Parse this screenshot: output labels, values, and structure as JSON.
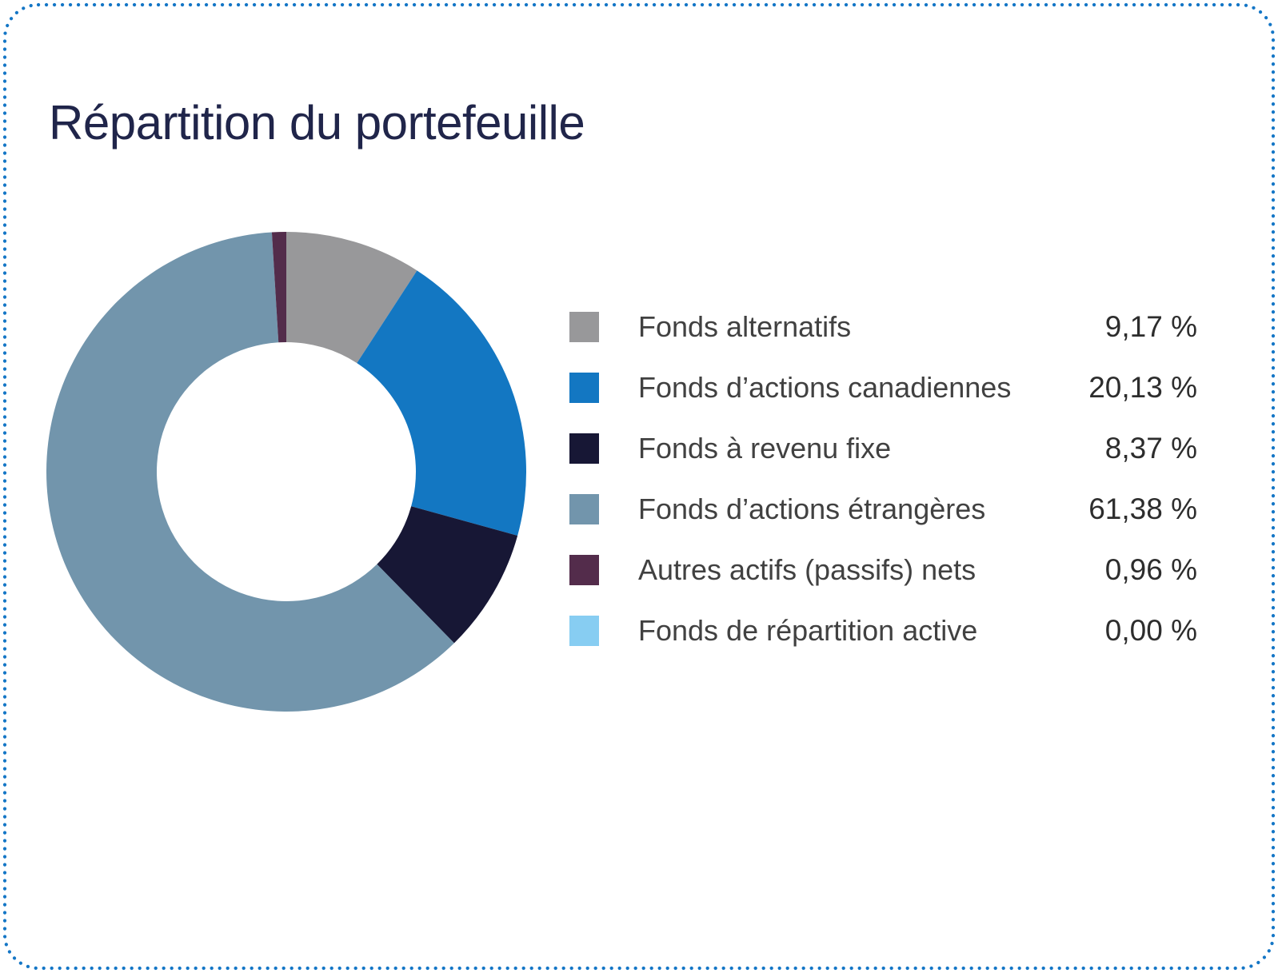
{
  "card": {
    "title": "Répartition du portefeuille",
    "border_color": "#1476C6",
    "background_color": "#ffffff",
    "title_color": "#20254A"
  },
  "chart_data": {
    "type": "pie",
    "subtype": "donut",
    "title": "Répartition du portefeuille",
    "legend_position": "right",
    "start_angle_deg": 0,
    "direction": "clockwise",
    "inner_radius_ratio": 0.54,
    "grid": false,
    "segments": [
      {
        "label": "Fonds alternatifs",
        "value": 9.17,
        "display": "9,17 %",
        "color": "#98989A"
      },
      {
        "label": "Fonds d’actions canadiennes",
        "value": 20.13,
        "display": "20,13 %",
        "color": "#1377C2"
      },
      {
        "label": "Fonds à revenu fixe",
        "value": 8.37,
        "display": "8,37 %",
        "color": "#171735"
      },
      {
        "label": "Fonds d’actions étrangères",
        "value": 61.38,
        "display": "61,38 %",
        "color": "#7295AC"
      },
      {
        "label": "Autres actifs (passifs) nets",
        "value": 0.96,
        "display": "0,96 %",
        "color": "#532C4B"
      },
      {
        "label": "Fonds de répartition active",
        "value": 0.0,
        "display": "0,00 %",
        "color": "#87CDF2"
      }
    ]
  }
}
